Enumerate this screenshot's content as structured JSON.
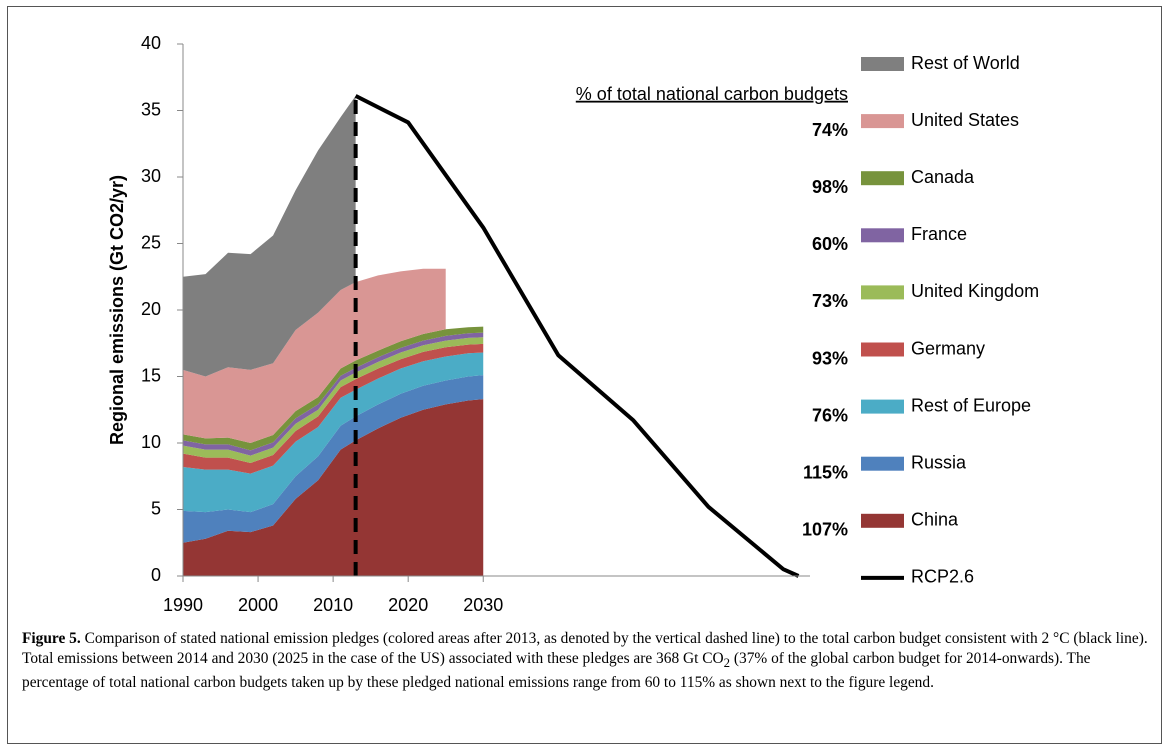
{
  "chart_data": {
    "type": "stacked_area",
    "ylabel": "Regional emissions (Gt CO2/yr)",
    "x": [
      1990,
      1993,
      1996,
      1999,
      2002,
      2005,
      2008,
      2011,
      2013,
      2016,
      2019,
      2022,
      2025,
      2028,
      2030
    ],
    "series": [
      {
        "name": "China",
        "color": "#943634",
        "budget_share": "107%",
        "values": [
          2.5,
          2.8,
          3.4,
          3.3,
          3.8,
          5.8,
          7.2,
          9.5,
          10.2,
          11.1,
          11.9,
          12.5,
          12.9,
          13.2,
          13.3
        ]
      },
      {
        "name": "Russia",
        "color": "#4f81bd",
        "budget_share": "115%",
        "values": [
          2.4,
          2.0,
          1.6,
          1.5,
          1.6,
          1.7,
          1.8,
          1.8,
          1.8,
          1.8,
          1.8,
          1.8,
          1.8,
          1.8,
          1.8
        ]
      },
      {
        "name": "Rest of Europe",
        "color": "#4bacc6",
        "budget_share": "76%",
        "values": [
          3.3,
          3.2,
          3.0,
          2.9,
          2.9,
          2.6,
          2.2,
          2.1,
          2.0,
          1.95,
          1.9,
          1.85,
          1.8,
          1.75,
          1.7
        ]
      },
      {
        "name": "Germany",
        "color": "#c0504d",
        "budget_share": "93%",
        "values": [
          1.0,
          0.9,
          0.9,
          0.8,
          0.8,
          0.8,
          0.8,
          0.8,
          0.8,
          0.75,
          0.7,
          0.7,
          0.7,
          0.65,
          0.65
        ]
      },
      {
        "name": "United Kingdom",
        "color": "#9bbb59",
        "budget_share": "73%",
        "values": [
          0.6,
          0.6,
          0.6,
          0.55,
          0.55,
          0.55,
          0.5,
          0.5,
          0.5,
          0.5,
          0.5,
          0.5,
          0.5,
          0.5,
          0.5
        ]
      },
      {
        "name": "France",
        "color": "#8064a2",
        "budget_share": "60%",
        "values": [
          0.4,
          0.4,
          0.4,
          0.4,
          0.4,
          0.4,
          0.4,
          0.35,
          0.35,
          0.35,
          0.35,
          0.35,
          0.35,
          0.35,
          0.35
        ]
      },
      {
        "name": "Canada",
        "color": "#77933c",
        "budget_share": "98%",
        "values": [
          0.45,
          0.45,
          0.5,
          0.55,
          0.55,
          0.55,
          0.55,
          0.55,
          0.55,
          0.5,
          0.5,
          0.5,
          0.5,
          0.45,
          0.45
        ]
      },
      {
        "name": "United States",
        "color": "#d99694",
        "budget_share": "74%",
        "values": [
          4.85,
          4.65,
          5.3,
          5.5,
          5.4,
          6.1,
          6.35,
          5.9,
          5.9,
          5.65,
          5.25,
          4.9,
          4.55,
          null,
          null
        ]
      },
      {
        "name": "Rest of World",
        "color": "#7f7f7f",
        "values": [
          7.0,
          7.7,
          8.6,
          8.7,
          9.6,
          10.5,
          12.2,
          13.0,
          14.0,
          null,
          null,
          null,
          null,
          null,
          null
        ]
      }
    ],
    "line_series": {
      "name": "RCP2.6",
      "color": "#000000",
      "x": [
        2013,
        2020,
        2030,
        2040,
        2050,
        2060,
        2070,
        2072
      ],
      "values": [
        36.1,
        34.1,
        26.2,
        16.6,
        11.7,
        5.2,
        0.5,
        0
      ]
    },
    "pledge_start_x": 2013,
    "legend_header": "% of total national carbon budgets",
    "xlim": [
      1990,
      2073
    ],
    "xticks": [
      1990,
      2000,
      2010,
      2020,
      2030
    ],
    "ylim": [
      0,
      40
    ],
    "yticks": [
      0,
      5,
      10,
      15,
      20,
      25,
      30,
      35,
      40
    ]
  },
  "caption": {
    "label": "Figure 5.",
    "text_before_sub": " Comparison of stated national emission pledges (colored areas after 2013, as denoted by the vertical dashed line) to the total carbon budget consistent with 2 °C (black line). Total emissions between 2014 and 2030 (2025 in the case of the US) associated with these pledges are 368 Gt CO",
    "sub": "2",
    "text_after_sub": " (37% of the global carbon budget for 2014-onwards). The percentage of total national carbon budgets taken up by these pledged national emissions range from 60 to 115% as shown next to the figure legend."
  }
}
